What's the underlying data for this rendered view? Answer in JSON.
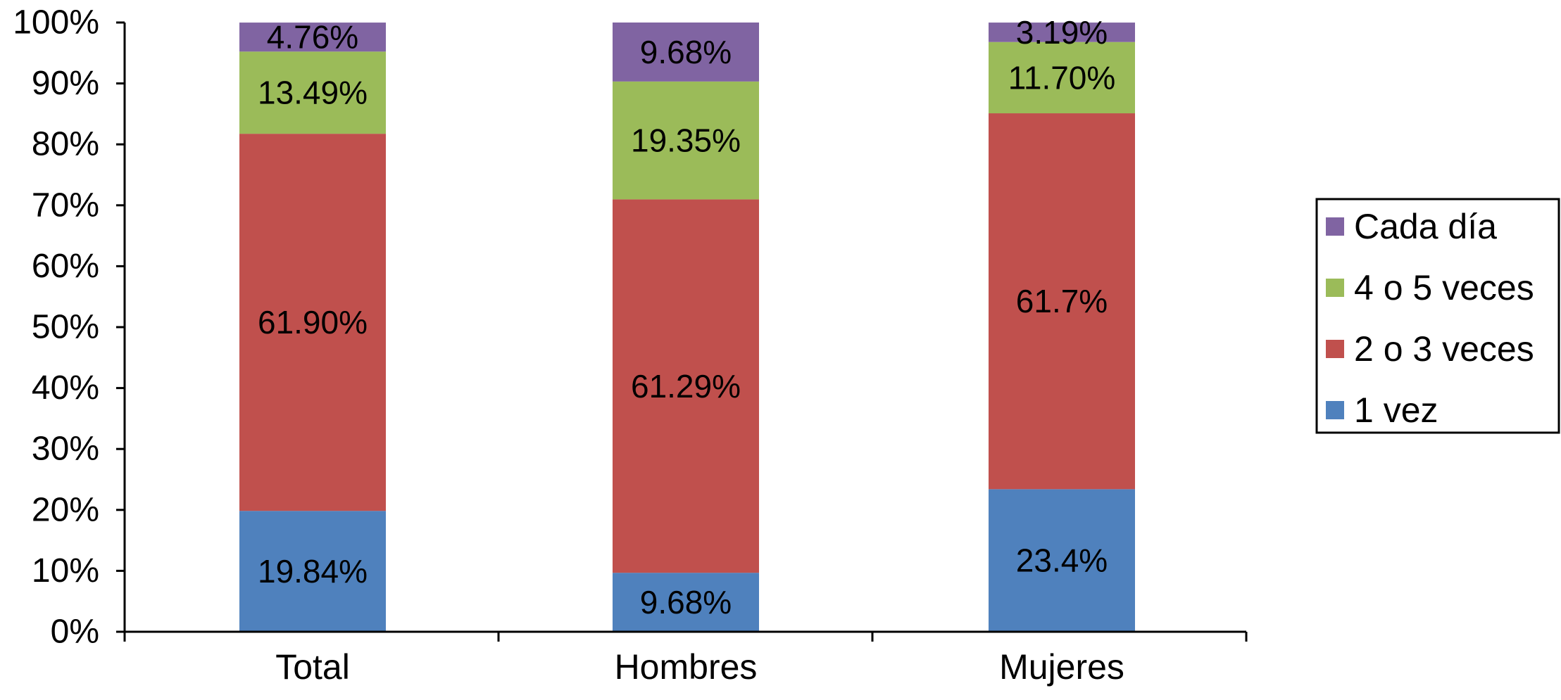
{
  "chart_data": {
    "type": "bar",
    "stacked": true,
    "title": "",
    "xlabel": "",
    "ylabel": "",
    "ylim": [
      0,
      100
    ],
    "y_ticks": [
      "0%",
      "10%",
      "20%",
      "30%",
      "40%",
      "50%",
      "60%",
      "70%",
      "80%",
      "90%",
      "100%"
    ],
    "grid": false,
    "legend_position": "right",
    "categories": [
      "Total",
      "Hombres",
      "Mujeres"
    ],
    "series": [
      {
        "name": "1 vez",
        "color": "#4f81bd",
        "values": [
          19.84,
          9.68,
          23.4
        ],
        "labels": [
          "19.84%",
          "9.68%",
          "23.4%"
        ]
      },
      {
        "name": "2 o 3 veces",
        "color": "#c0504d",
        "values": [
          61.9,
          61.29,
          61.7
        ],
        "labels": [
          "61.90%",
          "61.29%",
          "61.7%"
        ]
      },
      {
        "name": "4 o 5 veces",
        "color": "#9bbb59",
        "values": [
          13.49,
          19.35,
          11.7
        ],
        "labels": [
          "13.49%",
          "19.35%",
          "11.70%"
        ]
      },
      {
        "name": "Cada día",
        "color": "#8064a2",
        "values": [
          4.76,
          9.68,
          3.19
        ],
        "labels": [
          "4.76%",
          "9.68%",
          "3.19%"
        ]
      }
    ]
  }
}
